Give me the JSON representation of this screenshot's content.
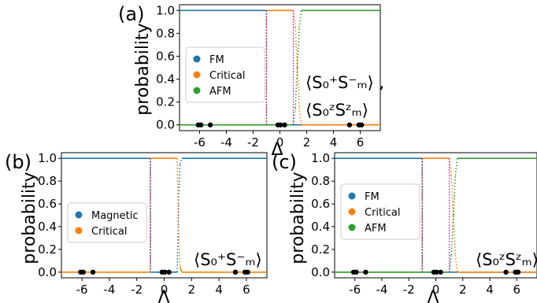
{
  "figure": {
    "panels": [
      {
        "id": "a",
        "panel_label": "(a)",
        "ylabel": "probability",
        "xlabel": "Δ",
        "legend": [
          "FM",
          "Critical",
          "AFM"
        ],
        "observable": [
          "⟨S₀⁺S⁻ₘ⟩ ,",
          "⟨S₀ᶻSᶻₘ⟩"
        ]
      },
      {
        "id": "b",
        "panel_label": "(b)",
        "ylabel": "probability",
        "xlabel": "Λ",
        "legend": [
          "Magnetic",
          "Critical"
        ],
        "observable": [
          "⟨S₀⁺S⁻ₘ⟩"
        ]
      },
      {
        "id": "c",
        "panel_label": "(c)",
        "ylabel": "probability",
        "xlabel": "Λ",
        "legend": [
          "FM",
          "Critical",
          "AFM"
        ],
        "observable": [
          "⟨S₀ᶻSᶻₘ⟩"
        ]
      }
    ]
  },
  "chart_data": [
    {
      "type": "line",
      "panel": "a",
      "xlabel": "Δ",
      "ylabel": "probability",
      "xlim": [
        -7.5,
        7.5
      ],
      "ylim": [
        -0.05,
        1.05
      ],
      "x_ticks": [
        "-6",
        "-4",
        "-2",
        "0",
        "2",
        "4",
        "6"
      ],
      "x_tick_values": [
        -6,
        -4,
        -2,
        0,
        2,
        4,
        6
      ],
      "y_ticks": [
        "0.0",
        "0.2",
        "0.4",
        "0.6",
        "0.8",
        "1.0"
      ],
      "y_tick_values": [
        0,
        0.2,
        0.4,
        0.6,
        0.8,
        1.0
      ],
      "legend_position": "center-left",
      "series": [
        {
          "name": "FM",
          "color": "#1f77b4",
          "x": [
            -7.5,
            -1.02,
            -1.0,
            7.5
          ],
          "y": [
            1.0,
            1.0,
            0.0,
            0.0
          ]
        },
        {
          "name": "Critical",
          "color": "#ff7f0e",
          "x": [
            -7.5,
            -1.02,
            -1.0,
            1.0,
            1.15,
            1.3,
            1.45,
            1.6,
            7.5
          ],
          "y": [
            0.0,
            0.0,
            1.0,
            1.0,
            0.85,
            0.5,
            0.15,
            0.0,
            0.0
          ]
        },
        {
          "name": "AFM",
          "color": "#2ca02c",
          "x": [
            -7.5,
            1.0,
            1.15,
            1.3,
            1.45,
            1.6,
            7.5
          ],
          "y": [
            0.0,
            0.0,
            0.15,
            0.5,
            0.85,
            1.0,
            1.0
          ]
        }
      ],
      "transition_lines": [
        -1.0,
        1.0
      ],
      "transition_color": "#b000b0",
      "black_points_x": [
        -6.1,
        -5.9,
        -5.2,
        -0.15,
        0.05,
        0.35,
        5.2,
        5.9,
        6.1
      ]
    },
    {
      "type": "line",
      "panel": "b",
      "xlabel": "Λ",
      "ylabel": "probability",
      "xlim": [
        -7.5,
        7.5
      ],
      "ylim": [
        -0.05,
        1.05
      ],
      "x_ticks": [
        "-6",
        "-4",
        "-2",
        "0",
        "2",
        "4",
        "6"
      ],
      "x_tick_values": [
        -6,
        -4,
        -2,
        0,
        2,
        4,
        6
      ],
      "y_ticks": [
        "0.0",
        "0.2",
        "0.4",
        "0.6",
        "0.8",
        "1.0"
      ],
      "y_tick_values": [
        0,
        0.2,
        0.4,
        0.6,
        0.8,
        1.0
      ],
      "legend_position": "center-left",
      "series": [
        {
          "name": "Magnetic",
          "color": "#1f77b4",
          "x": [
            -7.5,
            -1.02,
            -1.0,
            0.95,
            1.05,
            1.15,
            1.3,
            7.5
          ],
          "y": [
            1.0,
            1.0,
            0.0,
            0.0,
            0.6,
            0.95,
            1.0,
            1.0
          ]
        },
        {
          "name": "Critical",
          "color": "#ff7f0e",
          "x": [
            -7.5,
            -1.02,
            -1.0,
            0.95,
            1.05,
            1.15,
            1.3,
            7.5
          ],
          "y": [
            0.0,
            0.0,
            1.0,
            1.0,
            0.4,
            0.05,
            0.0,
            0.0
          ]
        }
      ],
      "transition_lines": [
        -1.0
      ],
      "transition_color": "#b000b0",
      "black_points_x": [
        -6.1,
        -5.9,
        -5.2,
        -0.15,
        0.05,
        0.35,
        5.2,
        5.9,
        6.1
      ]
    },
    {
      "type": "line",
      "panel": "c",
      "xlabel": "Λ",
      "ylabel": "probability",
      "xlim": [
        -7.5,
        7.5
      ],
      "ylim": [
        -0.05,
        1.05
      ],
      "x_ticks": [
        "-6",
        "-4",
        "-2",
        "0",
        "2",
        "4",
        "6"
      ],
      "x_tick_values": [
        -6,
        -4,
        -2,
        0,
        2,
        4,
        6
      ],
      "y_ticks": [
        "0.0",
        "0.2",
        "0.4",
        "0.6",
        "0.8",
        "1.0"
      ],
      "y_tick_values": [
        0,
        0.2,
        0.4,
        0.6,
        0.8,
        1.0
      ],
      "legend_position": "lower-center",
      "series": [
        {
          "name": "FM",
          "color": "#1f77b4",
          "x": [
            -7.5,
            -1.02,
            -1.0,
            7.5
          ],
          "y": [
            1.0,
            1.0,
            0.0,
            0.0
          ]
        },
        {
          "name": "Critical",
          "color": "#ff7f0e",
          "x": [
            -7.5,
            -1.02,
            -1.0,
            1.0,
            1.15,
            1.3,
            1.45,
            1.6,
            7.5
          ],
          "y": [
            0.0,
            0.0,
            1.0,
            1.0,
            0.85,
            0.5,
            0.15,
            0.0,
            0.0
          ]
        },
        {
          "name": "AFM",
          "color": "#2ca02c",
          "x": [
            -7.5,
            1.0,
            1.15,
            1.3,
            1.45,
            1.6,
            7.5
          ],
          "y": [
            0.0,
            0.0,
            0.15,
            0.5,
            0.85,
            1.0,
            1.0
          ]
        }
      ],
      "transition_lines": [
        -1.0,
        1.0
      ],
      "transition_color": "#b000b0",
      "black_points_x": [
        -6.1,
        -5.9,
        -5.2,
        -0.15,
        0.05,
        0.35,
        5.2,
        5.9,
        6.1
      ]
    }
  ]
}
